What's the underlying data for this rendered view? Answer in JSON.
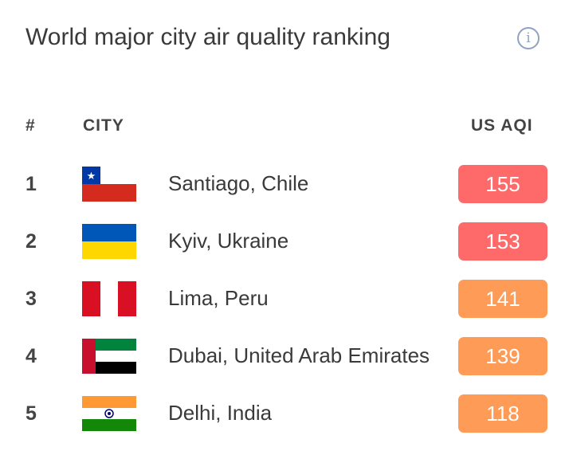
{
  "title": "World major city air quality ranking",
  "info_icon": "i",
  "headers": {
    "rank": "#",
    "city": "CITY",
    "aqi": "US AQI"
  },
  "rows": [
    {
      "rank": "1",
      "city": "Santiago, Chile",
      "aqi": "155",
      "color": "#fe6a69",
      "flag": "chile"
    },
    {
      "rank": "2",
      "city": "Kyiv, Ukraine",
      "aqi": "153",
      "color": "#fe6a69",
      "flag": "ukraine"
    },
    {
      "rank": "3",
      "city": "Lima, Peru",
      "aqi": "141",
      "color": "#fe9b57",
      "flag": "peru"
    },
    {
      "rank": "4",
      "city": "Dubai, United Arab Emirates",
      "aqi": "139",
      "color": "#fe9b57",
      "flag": "uae"
    },
    {
      "rank": "5",
      "city": "Delhi, India",
      "aqi": "118",
      "color": "#fe9b57",
      "flag": "india"
    }
  ]
}
